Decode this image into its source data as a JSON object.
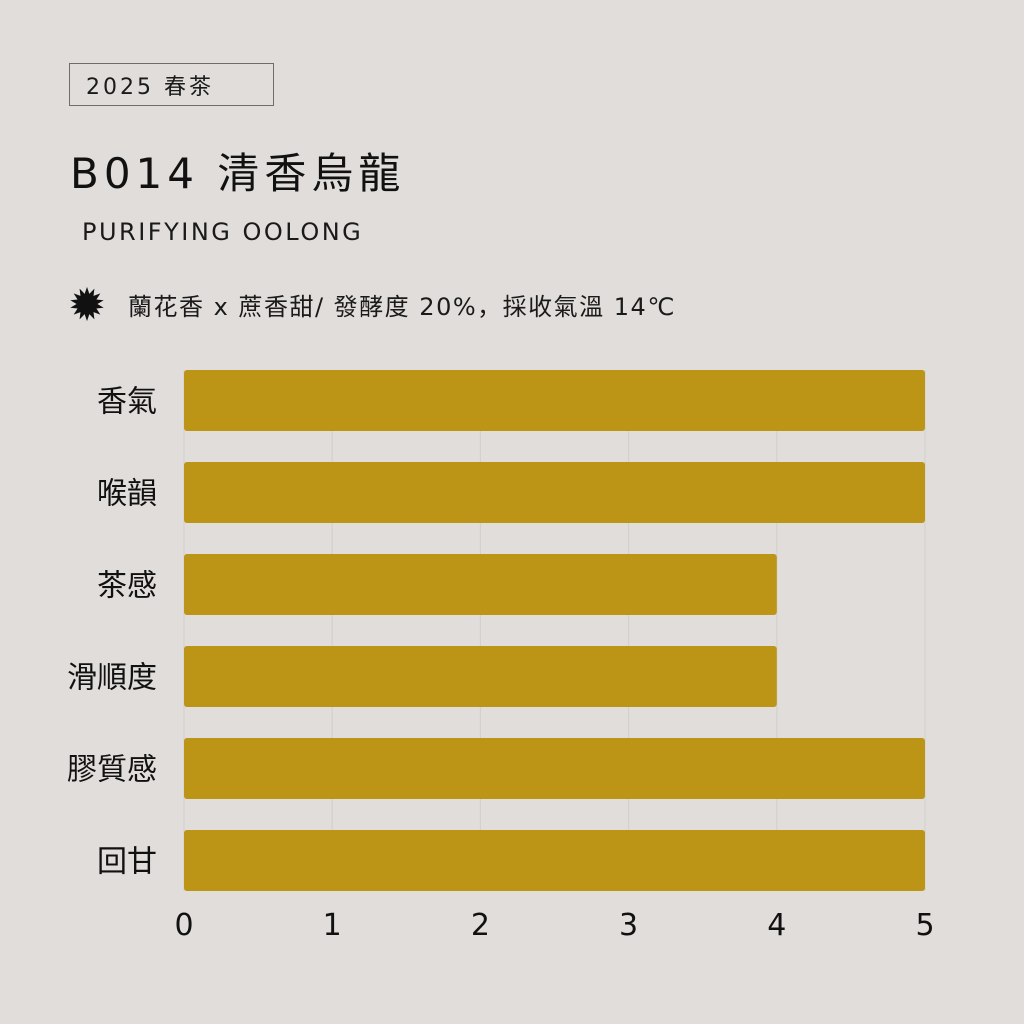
{
  "header": {
    "season_tag": "2025 春茶",
    "title": "B014 清香烏龍",
    "subtitle": "PURIFYING OOLONG",
    "description": "蘭花香 x 蔗香甜/ 發酵度 20%，採收氣溫 14℃",
    "bullet_icon": "starburst-icon"
  },
  "colors": {
    "background": "#e0dddb",
    "bar": "#bc9416",
    "grid": "#d2cfcc",
    "text": "#111111"
  },
  "chart_data": {
    "type": "bar",
    "orientation": "horizontal",
    "categories": [
      "香氣",
      "喉韻",
      "茶感",
      "滑順度",
      "膠質感",
      "回甘"
    ],
    "values": [
      5,
      5,
      4,
      4,
      5,
      5
    ],
    "xlim": [
      0,
      5
    ],
    "xticks": [
      "0",
      "1",
      "2",
      "3",
      "4",
      "5"
    ],
    "grid": true,
    "title": "",
    "xlabel": "",
    "ylabel": ""
  }
}
